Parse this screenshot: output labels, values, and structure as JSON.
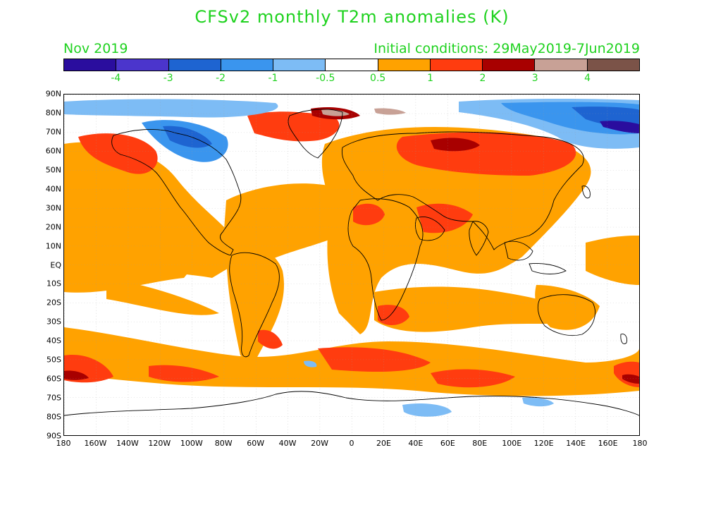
{
  "title": "CFSv2 monthly T2m anomalies (K)",
  "month": "Nov 2019",
  "initial_conditions": "Initial conditions: 29May2019-7Jun2019",
  "colorbar": {
    "colors": [
      "#2a0d9e",
      "#4b35cc",
      "#1e64d1",
      "#3a95ee",
      "#7dbcf5",
      "#ffffff",
      "#ffa200",
      "#ff3c0f",
      "#a80000",
      "#c8a196",
      "#7b5348"
    ],
    "labels": [
      "-4",
      "-3",
      "-2",
      "-1",
      "-0.5",
      "0.5",
      "1",
      "2",
      "3",
      "4"
    ]
  },
  "map": {
    "lat_labels": [
      "90N",
      "80N",
      "70N",
      "60N",
      "50N",
      "40N",
      "30N",
      "20N",
      "10N",
      "EQ",
      "10S",
      "20S",
      "30S",
      "40S",
      "50S",
      "60S",
      "70S",
      "80S",
      "90S"
    ],
    "lon_labels": [
      "180",
      "160W",
      "140W",
      "120W",
      "100W",
      "80W",
      "60W",
      "40W",
      "20W",
      "0",
      "20E",
      "40E",
      "60E",
      "80E",
      "100E",
      "120E",
      "140E",
      "160E",
      "180"
    ]
  }
}
